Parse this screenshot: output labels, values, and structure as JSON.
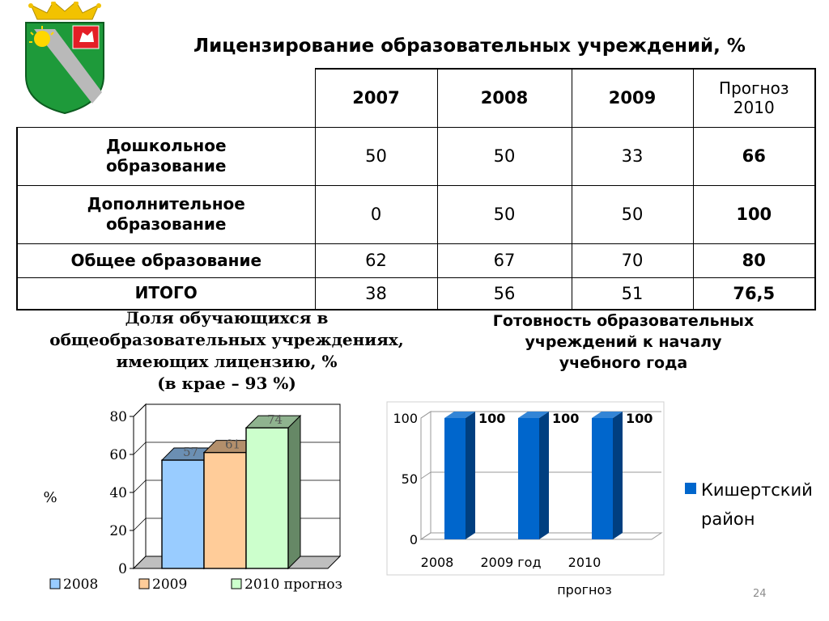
{
  "title": "Лицензирование образовательных учреждений, %",
  "table": {
    "headers": [
      "2007",
      "2008",
      "2009"
    ],
    "forecast_header": [
      "Прогноз",
      "2010"
    ],
    "rows": [
      {
        "label": [
          "Дошкольное",
          "образование"
        ],
        "values": [
          "50",
          "50",
          "33"
        ],
        "forecast": "66"
      },
      {
        "label": [
          "Дополнительное",
          "образование"
        ],
        "values": [
          "0",
          "50",
          "50"
        ],
        "forecast": "100"
      },
      {
        "label": [
          "Общее образование"
        ],
        "values": [
          "62",
          "67",
          "70"
        ],
        "forecast": "80"
      },
      {
        "label": [
          "ИТОГО"
        ],
        "values": [
          "38",
          "56",
          "51"
        ],
        "forecast": "76,5"
      }
    ]
  },
  "left_title": {
    "lines": [
      "Доля обучающихся в",
      "общеобразовательных учреждениях,",
      "имеющих лицензию, %"
    ],
    "note": "(в крае – 93 %)"
  },
  "right_title": {
    "lines": [
      "Готовность образовательных",
      "учреждений к началу",
      "учебного года"
    ]
  },
  "chart_data": [
    {
      "type": "bar",
      "categories": [
        "2008",
        "2009",
        "2010 прогноз"
      ],
      "values": [
        57,
        61,
        74
      ],
      "data_labels": [
        "57",
        "61",
        "74"
      ],
      "ylabel": "%",
      "ylim": [
        0,
        80
      ],
      "yticks": [
        "0",
        "20",
        "40",
        "60",
        "80"
      ],
      "legend": [
        "2008",
        "2009",
        "2010 прогноз"
      ],
      "legend_position": "bottom",
      "colors": [
        "#99ccff",
        "#ffcc99",
        "#ccffcc"
      ],
      "grid": true
    },
    {
      "type": "bar",
      "categories": [
        "2008",
        "2009 год",
        "2010"
      ],
      "category_sublabels": [
        "",
        "",
        "прогноз"
      ],
      "series": [
        {
          "name": "Кишертский район",
          "values": [
            100,
            100,
            100
          ]
        }
      ],
      "data_labels": [
        "100",
        "100",
        "100"
      ],
      "ylim": [
        0,
        100
      ],
      "yticks": [
        "0",
        "50",
        "100"
      ],
      "legend": [
        "Кишертский",
        "район"
      ],
      "legend_position": "right",
      "colors": [
        "#0066cc"
      ],
      "grid": true
    }
  ],
  "slide_number": "24"
}
